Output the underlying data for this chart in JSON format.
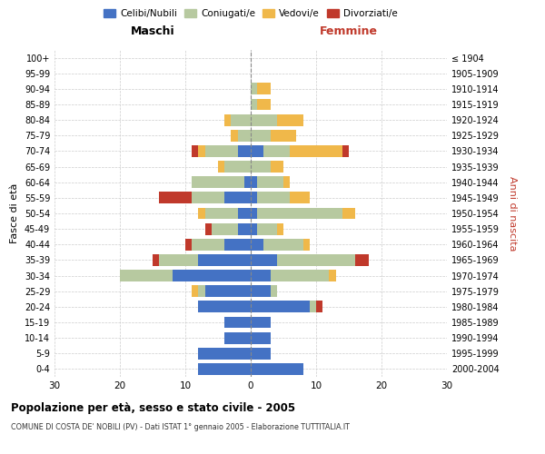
{
  "age_groups": [
    "0-4",
    "5-9",
    "10-14",
    "15-19",
    "20-24",
    "25-29",
    "30-34",
    "35-39",
    "40-44",
    "45-49",
    "50-54",
    "55-59",
    "60-64",
    "65-69",
    "70-74",
    "75-79",
    "80-84",
    "85-89",
    "90-94",
    "95-99",
    "100+"
  ],
  "birth_years": [
    "2000-2004",
    "1995-1999",
    "1990-1994",
    "1985-1989",
    "1980-1984",
    "1975-1979",
    "1970-1974",
    "1965-1969",
    "1960-1964",
    "1955-1959",
    "1950-1954",
    "1945-1949",
    "1940-1944",
    "1935-1939",
    "1930-1934",
    "1925-1929",
    "1920-1924",
    "1915-1919",
    "1910-1914",
    "1905-1909",
    "≤ 1904"
  ],
  "male": {
    "celibi": [
      8,
      8,
      4,
      4,
      8,
      7,
      12,
      8,
      4,
      2,
      2,
      4,
      1,
      0,
      2,
      0,
      0,
      0,
      0,
      0,
      0
    ],
    "coniugati": [
      0,
      0,
      0,
      0,
      0,
      1,
      8,
      6,
      5,
      4,
      5,
      5,
      8,
      4,
      5,
      2,
      3,
      0,
      0,
      0,
      0
    ],
    "vedovi": [
      0,
      0,
      0,
      0,
      0,
      1,
      0,
      0,
      0,
      0,
      1,
      0,
      0,
      1,
      1,
      1,
      1,
      0,
      0,
      0,
      0
    ],
    "divorziati": [
      0,
      0,
      0,
      0,
      0,
      0,
      0,
      1,
      1,
      1,
      0,
      5,
      0,
      0,
      1,
      0,
      0,
      0,
      0,
      0,
      0
    ]
  },
  "female": {
    "nubili": [
      8,
      3,
      3,
      3,
      9,
      3,
      3,
      4,
      2,
      1,
      1,
      1,
      1,
      0,
      2,
      0,
      0,
      0,
      0,
      0,
      0
    ],
    "coniugate": [
      0,
      0,
      0,
      0,
      1,
      1,
      9,
      12,
      6,
      3,
      13,
      5,
      4,
      3,
      4,
      3,
      4,
      1,
      1,
      0,
      0
    ],
    "vedove": [
      0,
      0,
      0,
      0,
      0,
      0,
      1,
      0,
      1,
      1,
      2,
      3,
      1,
      2,
      8,
      4,
      4,
      2,
      2,
      0,
      0
    ],
    "divorziate": [
      0,
      0,
      0,
      0,
      1,
      0,
      0,
      2,
      0,
      0,
      0,
      0,
      0,
      0,
      1,
      0,
      0,
      0,
      0,
      0,
      0
    ]
  },
  "colors": {
    "celibi": "#4472c4",
    "coniugati": "#b7c9a0",
    "vedovi": "#f0b84a",
    "divorziati": "#c0392b"
  },
  "xlim": 30,
  "title": "Popolazione per età, sesso e stato civile - 2005",
  "subtitle": "COMUNE DI COSTA DE' NOBILI (PV) - Dati ISTAT 1° gennaio 2005 - Elaborazione TUTTITALIA.IT",
  "ylabel_left": "Fasce di età",
  "ylabel_right": "Anni di nascita",
  "xlabel_left": "Maschi",
  "xlabel_right": "Femmine"
}
